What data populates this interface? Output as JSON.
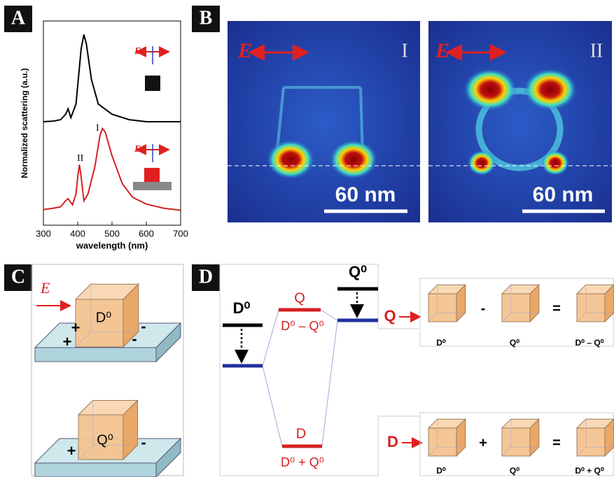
{
  "panel_labels": [
    "A",
    "B",
    "C",
    "D"
  ],
  "chart_data": {
    "type": "line",
    "x_label": "wavelength (nm)",
    "y_label": "Normalized scattering (a.u.)",
    "xlim": [
      300,
      700
    ],
    "xticks": [
      300,
      400,
      500,
      600,
      700
    ],
    "ylim": [
      0,
      3
    ],
    "annotations": [
      "I",
      "II"
    ],
    "inset_labels": [
      "E",
      "E"
    ],
    "series": [
      {
        "color": "#000000",
        "x": [
          300,
          330,
          350,
          365,
          372,
          380,
          395,
          410,
          418,
          425,
          440,
          460,
          500,
          550,
          600,
          700
        ],
        "values": [
          1.52,
          1.53,
          1.55,
          1.63,
          1.71,
          1.58,
          1.78,
          2.59,
          2.8,
          2.67,
          2.14,
          1.78,
          1.63,
          1.55,
          1.52,
          1.52
        ]
      },
      {
        "color": "#d42020",
        "x": [
          300,
          330,
          350,
          365,
          372,
          385,
          395,
          400,
          405,
          410,
          418,
          430,
          450,
          465,
          472,
          480,
          500,
          530,
          560,
          600,
          650,
          700
        ],
        "values": [
          0.23,
          0.25,
          0.27,
          0.36,
          0.39,
          0.3,
          0.46,
          0.71,
          0.89,
          0.71,
          0.36,
          0.46,
          0.86,
          1.32,
          1.42,
          1.37,
          1.02,
          0.61,
          0.41,
          0.31,
          0.25,
          0.22
        ]
      }
    ]
  },
  "field_maps": [
    {
      "field": "E",
      "label": "I",
      "scale": "60 nm"
    },
    {
      "field": "E",
      "label": "II",
      "scale": "60 nm"
    }
  ],
  "cubes": {
    "field": "E",
    "top": {
      "label": "D⁰",
      "charges": [
        "+",
        "+",
        "-",
        "-"
      ]
    },
    "bottom": {
      "label": "Q⁰",
      "charges": [
        "+",
        "-"
      ]
    }
  },
  "energy_diagram": {
    "D0": "D⁰",
    "Q0": "Q⁰",
    "Q": "Q",
    "D": "D",
    "Q_combo": "D⁰ – Q⁰",
    "D_combo": "D⁰ + Q⁰",
    "modes": [
      {
        "label": "Q",
        "terms": [
          "D⁰",
          "Q⁰",
          "D⁰ – Q⁰"
        ],
        "ops": [
          "-",
          "="
        ]
      },
      {
        "label": "D",
        "terms": [
          "D⁰",
          "Q⁰",
          "D⁰ + Q⁰"
        ],
        "ops": [
          "+",
          "="
        ]
      }
    ]
  }
}
